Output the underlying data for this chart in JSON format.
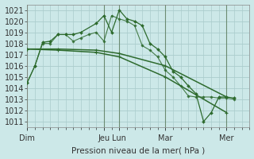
{
  "background_color": "#cce8e8",
  "grid_color": "#aacccc",
  "line_color": "#2d6a2d",
  "ylabel": "Pression niveau de la mer( hPa )",
  "ylim": [
    1010.5,
    1021.5
  ],
  "yticks": [
    1011,
    1012,
    1013,
    1014,
    1015,
    1016,
    1017,
    1018,
    1019,
    1020,
    1021
  ],
  "day_labels": [
    "Dim",
    "Jeu",
    "Lun",
    "Mar",
    "Mer"
  ],
  "day_positions": [
    0,
    5,
    6,
    9,
    13
  ],
  "vline_positions": [
    0,
    5,
    6,
    9,
    13
  ],
  "xlim": [
    0,
    14.5
  ],
  "series_main": {
    "x": [
      0,
      0.5,
      1.0,
      1.5,
      2.0,
      2.5,
      3.0,
      3.5,
      4.5,
      5.0,
      5.5,
      6.0,
      6.5,
      7.0,
      7.5,
      8.0,
      8.5,
      9.0,
      9.5,
      10.0,
      10.5,
      11.0,
      11.5,
      12.0,
      12.5,
      13.0,
      13.5
    ],
    "y": [
      1014.5,
      1016.0,
      1018.1,
      1018.2,
      1018.8,
      1018.8,
      1018.8,
      1019.0,
      1019.8,
      1020.5,
      1019.0,
      1021.0,
      1020.2,
      1020.0,
      1019.6,
      1018.0,
      1017.5,
      1016.8,
      1015.5,
      1015.0,
      1014.2,
      1013.5,
      1011.0,
      1011.8,
      1013.2,
      1013.2,
      1013.1
    ]
  },
  "series_smooth1": {
    "x": [
      0,
      2.0,
      4.5,
      6.0,
      9.0,
      13.0
    ],
    "y": [
      1017.5,
      1017.5,
      1017.4,
      1017.1,
      1016.0,
      1013.2
    ]
  },
  "series_smooth2": {
    "x": [
      0,
      2.0,
      4.5,
      6.0,
      9.0,
      13.0
    ],
    "y": [
      1017.5,
      1017.4,
      1017.2,
      1016.8,
      1015.0,
      1011.8
    ]
  },
  "series_secondary": {
    "x": [
      0,
      0.5,
      1.0,
      1.5,
      2.0,
      2.5,
      3.0,
      3.5,
      4.0,
      4.5,
      5.0,
      5.5,
      6.0,
      6.5,
      7.0,
      7.5,
      8.0,
      8.5,
      9.0,
      9.5,
      10.0,
      10.5,
      11.0,
      11.5,
      12.0,
      12.5,
      13.0,
      13.5
    ],
    "y": [
      1014.5,
      1016.0,
      1018.0,
      1018.0,
      1018.8,
      1018.8,
      1018.2,
      1018.5,
      1018.8,
      1019.0,
      1018.2,
      1020.5,
      1020.2,
      1020.0,
      1019.6,
      1017.8,
      1017.4,
      1016.8,
      1015.6,
      1015.0,
      1014.2,
      1013.3,
      1013.2,
      1013.2,
      1013.2,
      1013.1,
      1013.1,
      1013.0
    ]
  },
  "tick_minor_count": 4
}
